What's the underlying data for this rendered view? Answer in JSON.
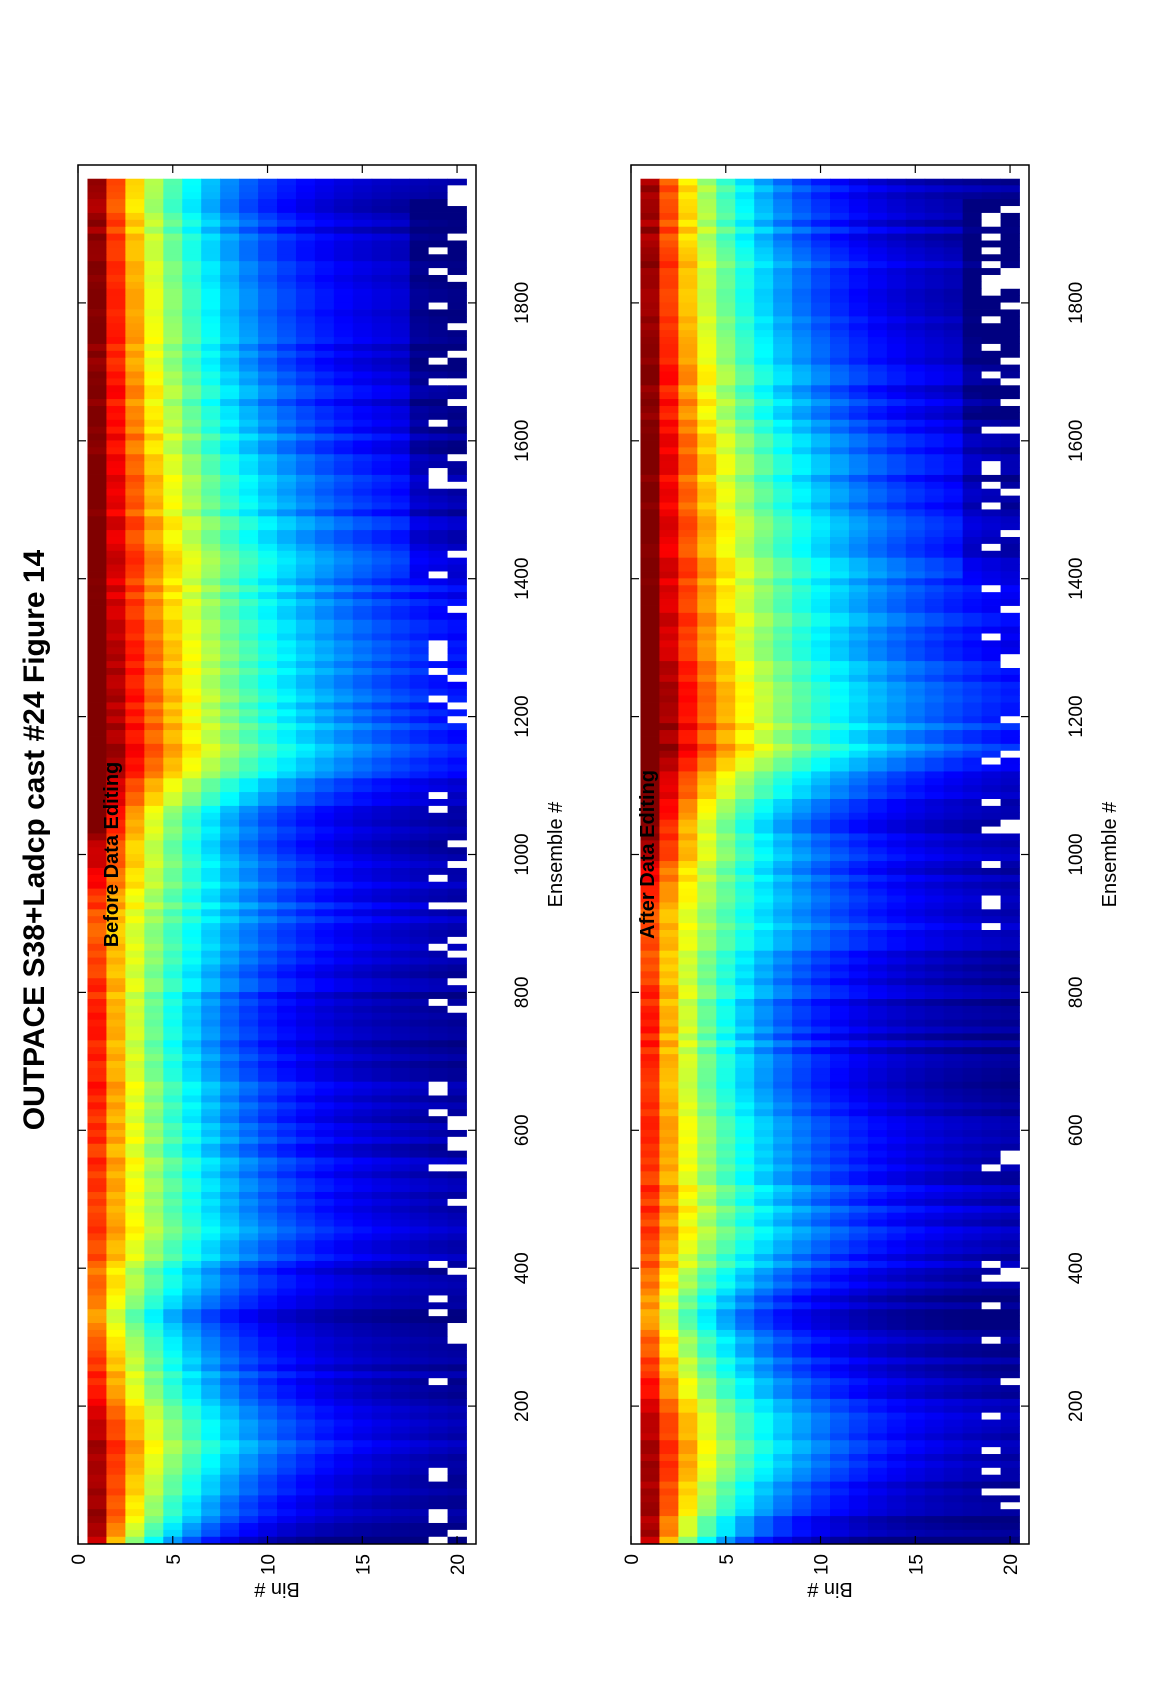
{
  "figure": {
    "title": "OUTPACE S38+Ladcp cast #24  Figure 14"
  },
  "colormap": "jet",
  "colors": {
    "axis": "#000000",
    "missing_data": "#ffffff"
  },
  "chart_data": [
    {
      "type": "heatmap",
      "title": "Before Data Editing",
      "xlabel": "Ensemble #",
      "ylabel": "Bin #",
      "xlim": [
        0,
        2000
      ],
      "ylim": [
        0,
        21
      ],
      "xticks": [
        200,
        400,
        600,
        800,
        1000,
        1200,
        1400,
        1600,
        1800
      ],
      "yticks": [
        0,
        5,
        10,
        15,
        20
      ],
      "bins": [
        1,
        20
      ],
      "ensembles": [
        1,
        1980
      ],
      "value_range": [
        0,
        1
      ],
      "depth_profile": {
        "ensemble": [
          0,
          130,
          330,
          440,
          760,
          900,
          1050,
          1150,
          1250,
          1400,
          1650,
          1980
        ],
        "decay_bins": [
          3.5,
          7,
          4.5,
          7.5,
          5,
          7.5,
          5.5,
          10,
          9,
          9,
          6.5,
          5
        ],
        "surface_level": [
          0.95,
          0.98,
          0.72,
          0.82,
          0.85,
          0.78,
          1.02,
          1.08,
          1.05,
          1.02,
          1.0,
          0.96
        ]
      },
      "grid": false,
      "edited": false
    },
    {
      "type": "heatmap",
      "title": "After Data Editing",
      "xlabel": "Ensemble #",
      "ylabel": "Bin #",
      "xlim": [
        0,
        2000
      ],
      "ylim": [
        0,
        21
      ],
      "xticks": [
        200,
        400,
        600,
        800,
        1000,
        1200,
        1400,
        1600,
        1800
      ],
      "yticks": [
        0,
        5,
        10,
        15,
        20
      ],
      "bins": [
        1,
        20
      ],
      "ensembles": [
        1,
        1980
      ],
      "value_range": [
        0,
        1
      ],
      "depth_profile": {
        "ensemble": [
          0,
          130,
          330,
          440,
          760,
          900,
          1050,
          1150,
          1250,
          1400,
          1650,
          1980
        ],
        "decay_bins": [
          3.5,
          7,
          4.5,
          7.5,
          5,
          7.5,
          5.5,
          10,
          9,
          9,
          6.5,
          5
        ],
        "surface_level": [
          0.95,
          0.98,
          0.72,
          0.82,
          0.85,
          0.78,
          1.02,
          1.08,
          1.05,
          1.02,
          1.0,
          0.96
        ]
      },
      "grid": false,
      "edited": true
    }
  ]
}
